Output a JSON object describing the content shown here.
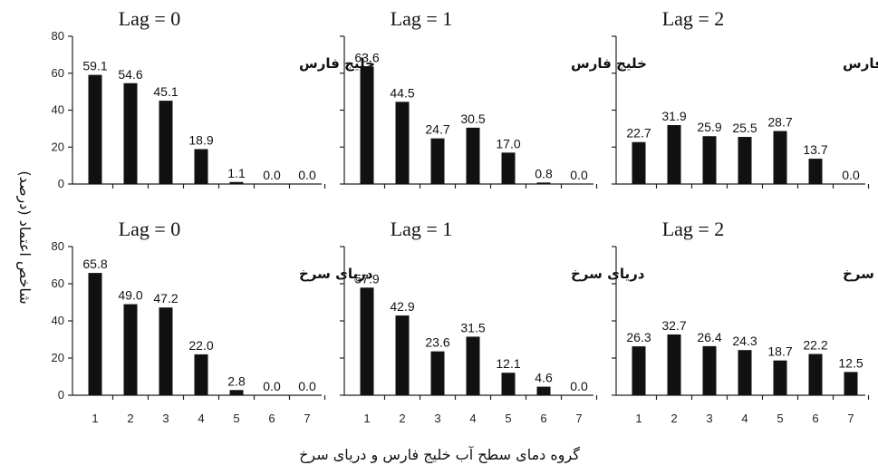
{
  "chart_data": [
    {
      "type": "bar",
      "title": "Lag = 0",
      "region": "خلیج فارس",
      "categories": [
        "1",
        "2",
        "3",
        "4",
        "5",
        "6",
        "7"
      ],
      "values": [
        59.1,
        54.6,
        45.1,
        18.9,
        1.1,
        0.0,
        0.0
      ],
      "value_labels": [
        "59.1",
        "54.6",
        "45.1",
        "18.9",
        "1.1",
        "0.0",
        "0.0"
      ],
      "yticks": [
        "0",
        "20",
        "40",
        "60",
        "80"
      ],
      "ylim": [
        0,
        80
      ]
    },
    {
      "type": "bar",
      "title": "Lag = 1",
      "region": "خلیج فارس",
      "categories": [
        "1",
        "2",
        "3",
        "4",
        "5",
        "6",
        "7"
      ],
      "values": [
        63.6,
        44.5,
        24.7,
        30.5,
        17.0,
        0.8,
        0.0
      ],
      "value_labels": [
        "63.6",
        "44.5",
        "24.7",
        "30.5",
        "17.0",
        "0.8",
        "0.0"
      ],
      "yticks": [
        "0",
        "20",
        "40",
        "60",
        "80"
      ],
      "ylim": [
        0,
        80
      ]
    },
    {
      "type": "bar",
      "title": "Lag = 2",
      "region": "خلیج فارس",
      "categories": [
        "1",
        "2",
        "3",
        "4",
        "5",
        "6",
        "7"
      ],
      "values": [
        22.7,
        31.9,
        25.9,
        25.5,
        28.7,
        13.7,
        0.0
      ],
      "value_labels": [
        "22.7",
        "31.9",
        "25.9",
        "25.5",
        "28.7",
        "13.7",
        "0.0"
      ],
      "yticks": [
        "0",
        "20",
        "40",
        "60",
        "80"
      ],
      "ylim": [
        0,
        80
      ]
    },
    {
      "type": "bar",
      "title": "Lag = 0",
      "region": "دریای سرخ",
      "categories": [
        "1",
        "2",
        "3",
        "4",
        "5",
        "6",
        "7"
      ],
      "values": [
        65.8,
        49.0,
        47.2,
        22.0,
        2.8,
        0.0,
        0.0
      ],
      "value_labels": [
        "65.8",
        "49.0",
        "47.2",
        "22.0",
        "2.8",
        "0.0",
        "0.0"
      ],
      "yticks": [
        "0",
        "20",
        "40",
        "60",
        "80"
      ],
      "ylim": [
        0,
        80
      ]
    },
    {
      "type": "bar",
      "title": "Lag = 1",
      "region": "دریای سرخ",
      "categories": [
        "1",
        "2",
        "3",
        "4",
        "5",
        "6",
        "7"
      ],
      "values": [
        57.9,
        42.9,
        23.6,
        31.5,
        12.1,
        4.6,
        0.0
      ],
      "value_labels": [
        "57.9",
        "42.9",
        "23.6",
        "31.5",
        "12.1",
        "4.6",
        "0.0"
      ],
      "yticks": [
        "0",
        "20",
        "40",
        "60",
        "80"
      ],
      "ylim": [
        0,
        80
      ]
    },
    {
      "type": "bar",
      "title": "Lag = 2",
      "region": "دریای سرخ",
      "categories": [
        "1",
        "2",
        "3",
        "4",
        "5",
        "6",
        "7"
      ],
      "values": [
        26.3,
        32.7,
        26.4,
        24.3,
        18.7,
        22.2,
        12.5
      ],
      "value_labels": [
        "26.3",
        "32.7",
        "26.4",
        "24.3",
        "18.7",
        "22.2",
        "12.5"
      ],
      "yticks": [
        "0",
        "20",
        "40",
        "60",
        "80"
      ],
      "ylim": [
        0,
        80
      ]
    }
  ],
  "ylabel": "شاخص اعتماد (درصد)",
  "xlabel": "گروه دمای سطح آب خلیج فارس و دریای سرخ",
  "colors": {
    "bar": "#111111",
    "axis": "#222222"
  }
}
